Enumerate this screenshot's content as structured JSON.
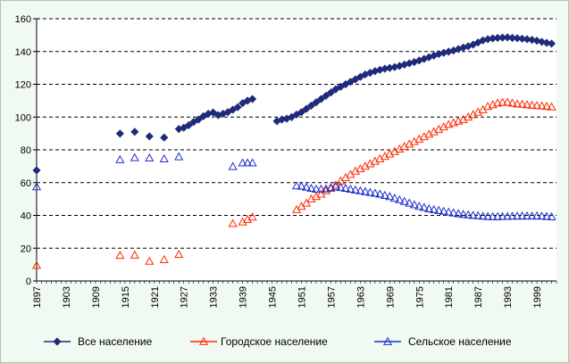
{
  "chart_data": {
    "type": "line",
    "title": "",
    "xlabel": "",
    "ylabel": "",
    "x_ticks": [
      "1897",
      "1903",
      "1909",
      "1915",
      "1921",
      "1927",
      "1933",
      "1939",
      "1945",
      "1951",
      "1957",
      "1963",
      "1969",
      "1975",
      "1981",
      "1987",
      "1993",
      "1999"
    ],
    "y_ticks": [
      0,
      20,
      40,
      60,
      80,
      100,
      120,
      140,
      160
    ],
    "xlim": [
      1897,
      2003
    ],
    "ylim": [
      0,
      160
    ],
    "grid": "horizontal dashed",
    "legend_position": "bottom",
    "series": [
      {
        "name": "Все население",
        "color": "#1f2a7a",
        "marker": "diamond-filled",
        "points": [
          [
            1897,
            67.5
          ],
          [
            1914,
            89.9
          ],
          [
            1917,
            91.0
          ],
          [
            1920,
            88.2
          ],
          [
            1923,
            87.5
          ],
          [
            1926,
            92.7
          ],
          [
            1927,
            93.5
          ],
          [
            1928,
            95.0
          ],
          [
            1929,
            97.0
          ],
          [
            1930,
            98.5
          ],
          [
            1931,
            100.5
          ],
          [
            1932,
            102.0
          ],
          [
            1933,
            102.8
          ],
          [
            1934,
            101.2
          ],
          [
            1935,
            102.0
          ],
          [
            1936,
            103.0
          ],
          [
            1937,
            104.5
          ],
          [
            1938,
            106.0
          ],
          [
            1939,
            108.5
          ],
          [
            1940,
            110.0
          ],
          [
            1941,
            111.0
          ],
          [
            1946,
            97.5
          ],
          [
            1947,
            98.5
          ],
          [
            1948,
            99.0
          ],
          [
            1949,
            100.0
          ],
          [
            1950,
            101.5
          ],
          [
            1951,
            103.0
          ],
          [
            1952,
            105.0
          ],
          [
            1953,
            107.0
          ],
          [
            1954,
            109.0
          ],
          [
            1955,
            111.0
          ],
          [
            1956,
            113.0
          ],
          [
            1957,
            115.0
          ],
          [
            1958,
            117.0
          ],
          [
            1959,
            118.5
          ],
          [
            1960,
            120.0
          ],
          [
            1961,
            121.5
          ],
          [
            1962,
            123.0
          ],
          [
            1963,
            124.5
          ],
          [
            1964,
            126.0
          ],
          [
            1965,
            127.0
          ],
          [
            1966,
            128.0
          ],
          [
            1967,
            128.8
          ],
          [
            1968,
            129.5
          ],
          [
            1969,
            130.0
          ],
          [
            1970,
            130.5
          ],
          [
            1971,
            131.2
          ],
          [
            1972,
            132.0
          ],
          [
            1973,
            132.8
          ],
          [
            1974,
            133.6
          ],
          [
            1975,
            134.5
          ],
          [
            1976,
            135.5
          ],
          [
            1977,
            136.5
          ],
          [
            1978,
            137.5
          ],
          [
            1979,
            138.5
          ],
          [
            1980,
            139.2
          ],
          [
            1981,
            139.9
          ],
          [
            1982,
            140.6
          ],
          [
            1983,
            141.5
          ],
          [
            1984,
            142.4
          ],
          [
            1985,
            143.2
          ],
          [
            1986,
            144.2
          ],
          [
            1987,
            145.5
          ],
          [
            1988,
            146.8
          ],
          [
            1989,
            147.5
          ],
          [
            1990,
            148.0
          ],
          [
            1991,
            148.3
          ],
          [
            1992,
            148.5
          ],
          [
            1993,
            148.6
          ],
          [
            1994,
            148.3
          ],
          [
            1995,
            148.1
          ],
          [
            1996,
            147.8
          ],
          [
            1997,
            147.5
          ],
          [
            1998,
            147.1
          ],
          [
            1999,
            146.6
          ],
          [
            2000,
            145.9
          ],
          [
            2001,
            145.3
          ],
          [
            2002,
            144.8
          ]
        ]
      },
      {
        "name": "Городское население",
        "color": "#ff2a00",
        "marker": "triangle-open",
        "points": [
          [
            1897,
            9.5
          ],
          [
            1914,
            15.6
          ],
          [
            1917,
            15.8
          ],
          [
            1920,
            12.0
          ],
          [
            1923,
            13.0
          ],
          [
            1926,
            16.2
          ],
          [
            1937,
            35.0
          ],
          [
            1939,
            36.0
          ],
          [
            1940,
            37.5
          ],
          [
            1941,
            39.0
          ],
          [
            1950,
            43.5
          ],
          [
            1951,
            45.5
          ],
          [
            1952,
            47.5
          ],
          [
            1953,
            50.0
          ],
          [
            1954,
            51.5
          ],
          [
            1955,
            53.0
          ],
          [
            1956,
            55.0
          ],
          [
            1957,
            56.5
          ],
          [
            1958,
            58.5
          ],
          [
            1959,
            61.0
          ],
          [
            1960,
            63.0
          ],
          [
            1961,
            65.0
          ],
          [
            1962,
            67.0
          ],
          [
            1963,
            68.5
          ],
          [
            1964,
            70.0
          ],
          [
            1965,
            71.5
          ],
          [
            1966,
            73.0
          ],
          [
            1967,
            74.5
          ],
          [
            1968,
            76.0
          ],
          [
            1969,
            77.5
          ],
          [
            1970,
            79.0
          ],
          [
            1971,
            80.5
          ],
          [
            1972,
            82.0
          ],
          [
            1973,
            83.5
          ],
          [
            1974,
            85.0
          ],
          [
            1975,
            86.5
          ],
          [
            1976,
            88.0
          ],
          [
            1977,
            89.5
          ],
          [
            1978,
            91.0
          ],
          [
            1979,
            92.5
          ],
          [
            1980,
            94.0
          ],
          [
            1981,
            95.5
          ],
          [
            1982,
            96.5
          ],
          [
            1983,
            97.5
          ],
          [
            1984,
            98.5
          ],
          [
            1985,
            100.0
          ],
          [
            1986,
            101.5
          ],
          [
            1987,
            103.0
          ],
          [
            1988,
            104.5
          ],
          [
            1989,
            106.5
          ],
          [
            1990,
            107.5
          ],
          [
            1991,
            108.5
          ],
          [
            1992,
            109.0
          ],
          [
            1993,
            109.0
          ],
          [
            1994,
            108.5
          ],
          [
            1995,
            108.0
          ],
          [
            1996,
            107.8
          ],
          [
            1997,
            107.5
          ],
          [
            1998,
            107.2
          ],
          [
            1999,
            107.0
          ],
          [
            2000,
            106.8
          ],
          [
            2001,
            106.5
          ],
          [
            2002,
            106.2
          ]
        ]
      },
      {
        "name": "Сельское население",
        "color": "#1f30c8",
        "marker": "triangle-open",
        "points": [
          [
            1897,
            57.5
          ],
          [
            1914,
            74.0
          ],
          [
            1917,
            75.2
          ],
          [
            1920,
            75.0
          ],
          [
            1923,
            74.5
          ],
          [
            1926,
            75.8
          ],
          [
            1937,
            69.8
          ],
          [
            1939,
            72.0
          ],
          [
            1940,
            72.0
          ],
          [
            1941,
            72.0
          ],
          [
            1950,
            58.0
          ],
          [
            1951,
            57.8
          ],
          [
            1952,
            57.2
          ],
          [
            1953,
            56.5
          ],
          [
            1954,
            56.0
          ],
          [
            1955,
            56.0
          ],
          [
            1956,
            56.2
          ],
          [
            1957,
            57.0
          ],
          [
            1958,
            57.5
          ],
          [
            1959,
            57.0
          ],
          [
            1960,
            56.5
          ],
          [
            1961,
            56.0
          ],
          [
            1962,
            55.5
          ],
          [
            1963,
            55.0
          ],
          [
            1964,
            54.5
          ],
          [
            1965,
            54.0
          ],
          [
            1966,
            53.5
          ],
          [
            1967,
            53.0
          ],
          [
            1968,
            52.2
          ],
          [
            1969,
            51.5
          ],
          [
            1970,
            50.5
          ],
          [
            1971,
            49.5
          ],
          [
            1972,
            48.5
          ],
          [
            1973,
            47.5
          ],
          [
            1974,
            46.5
          ],
          [
            1975,
            45.5
          ],
          [
            1976,
            44.8
          ],
          [
            1977,
            44.0
          ],
          [
            1978,
            43.5
          ],
          [
            1979,
            43.0
          ],
          [
            1980,
            42.5
          ],
          [
            1981,
            42.0
          ],
          [
            1982,
            41.5
          ],
          [
            1983,
            41.0
          ],
          [
            1984,
            40.6
          ],
          [
            1985,
            40.3
          ],
          [
            1986,
            40.0
          ],
          [
            1987,
            39.8
          ],
          [
            1988,
            39.5
          ],
          [
            1989,
            39.3
          ],
          [
            1990,
            39.2
          ],
          [
            1991,
            39.2
          ],
          [
            1992,
            39.3
          ],
          [
            1993,
            39.4
          ],
          [
            1994,
            39.5
          ],
          [
            1995,
            39.5
          ],
          [
            1996,
            39.6
          ],
          [
            1997,
            39.6
          ],
          [
            1998,
            39.6
          ],
          [
            1999,
            39.7
          ],
          [
            2000,
            39.5
          ],
          [
            2001,
            39.3
          ],
          [
            2002,
            39.1
          ]
        ]
      }
    ]
  }
}
